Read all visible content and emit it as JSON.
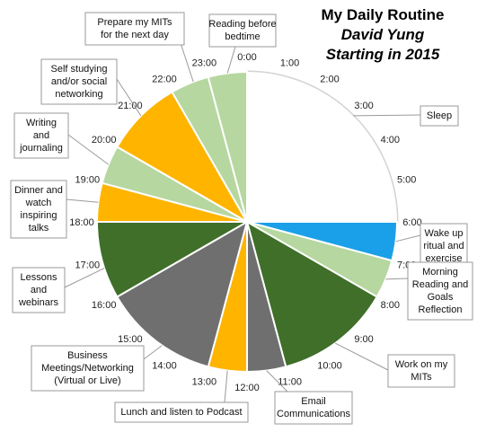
{
  "title": {
    "line1": "My Daily Routine",
    "line2": "David Yung",
    "line3": "Starting in 2015"
  },
  "colors": {
    "sleep": "#ffffff",
    "wake": "#1aa0e8",
    "reading": "#b6d7a0",
    "dark_green": "#3f6f29",
    "gray": "#6f6f6f",
    "orange": "#ffb400",
    "line": "#d0d0d0"
  },
  "chart_data": {
    "type": "pie",
    "variant": "24-hour clock radial chart",
    "hours": [
      "0:00",
      "1:00",
      "2:00",
      "3:00",
      "4:00",
      "5:00",
      "6:00",
      "7:00",
      "8:00",
      "9:00",
      "10:00",
      "11:00",
      "12:00",
      "13:00",
      "14:00",
      "15:00",
      "16:00",
      "17:00",
      "18:00",
      "19:00",
      "20:00",
      "21:00",
      "22:00",
      "23:00"
    ],
    "segments": [
      {
        "label": "Sleep",
        "start": 0,
        "end": 6,
        "color_key": "sleep"
      },
      {
        "label": "Wake up ritual and exercise",
        "start": 6,
        "end": 7,
        "color_key": "wake"
      },
      {
        "label": "Morning Reading and Goals Reflection",
        "start": 7,
        "end": 8,
        "color_key": "reading"
      },
      {
        "label": "Work on my MITs",
        "start": 8,
        "end": 11,
        "color_key": "dark_green"
      },
      {
        "label": "Email Communications",
        "start": 11,
        "end": 12,
        "color_key": "gray"
      },
      {
        "label": "Lunch and listen to Podcast",
        "start": 12,
        "end": 13,
        "color_key": "orange"
      },
      {
        "label": "Business Meetings/Networking (Virtual or Live)",
        "start": 13,
        "end": 16,
        "color_key": "gray"
      },
      {
        "label": "Lessons and webinars",
        "start": 16,
        "end": 18,
        "color_key": "dark_green"
      },
      {
        "label": "Dinner and watch inspiring talks",
        "start": 18,
        "end": 19,
        "color_key": "orange"
      },
      {
        "label": "Writing and journaling",
        "start": 19,
        "end": 20,
        "color_key": "reading"
      },
      {
        "label": "Self studying and/or social networking",
        "start": 20,
        "end": 22,
        "color_key": "orange"
      },
      {
        "label": "Prepare my MITs for the next day",
        "start": 22,
        "end": 23,
        "color_key": "reading"
      },
      {
        "label": "Reading before bedtime",
        "start": 23,
        "end": 24,
        "color_key": "reading"
      }
    ],
    "callouts": [
      {
        "lines": [
          "Prepare my MITs",
          "for the next day"
        ],
        "segment": "Prepare my MITs for the next day"
      },
      {
        "lines": [
          "Reading before",
          "bedtime"
        ],
        "segment": "Reading before bedtime"
      },
      {
        "lines": [
          "Sleep"
        ],
        "segment": "Sleep"
      },
      {
        "lines": [
          "Wake up",
          "ritual and",
          "exercise"
        ],
        "segment": "Wake up ritual and exercise"
      },
      {
        "lines": [
          "Morning",
          "Reading and",
          "Goals",
          "Reflection"
        ],
        "segment": "Morning Reading and Goals Reflection"
      },
      {
        "lines": [
          "Work on my",
          "MITs"
        ],
        "segment": "Work on my MITs"
      },
      {
        "lines": [
          "Email",
          "Communications"
        ],
        "segment": "Email Communications"
      },
      {
        "lines": [
          "Lunch and listen to Podcast"
        ],
        "segment": "Lunch and listen to Podcast"
      },
      {
        "lines": [
          "Business",
          "Meetings/Networking",
          "(Virtual or Live)"
        ],
        "segment": "Business Meetings/Networking (Virtual or Live)"
      },
      {
        "lines": [
          "Lessons",
          "and",
          "webinars"
        ],
        "segment": "Lessons and webinars"
      },
      {
        "lines": [
          "Dinner and",
          "watch",
          "inspiring",
          "talks"
        ],
        "segment": "Dinner and watch inspiring talks"
      },
      {
        "lines": [
          "Writing",
          "and",
          "journaling"
        ],
        "segment": "Writing and journaling"
      },
      {
        "lines": [
          "Self studying",
          "and/or social",
          "networking"
        ],
        "segment": "Self studying and/or social networking"
      }
    ]
  }
}
